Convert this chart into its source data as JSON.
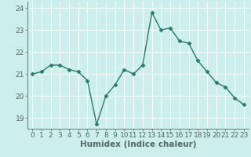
{
  "x": [
    0,
    1,
    2,
    3,
    4,
    5,
    6,
    7,
    8,
    9,
    10,
    11,
    12,
    13,
    14,
    15,
    16,
    17,
    18,
    19,
    20,
    21,
    22,
    23
  ],
  "y": [
    21.0,
    21.1,
    21.4,
    21.4,
    21.2,
    21.1,
    20.7,
    18.7,
    20.0,
    20.5,
    21.2,
    21.0,
    21.4,
    23.8,
    23.0,
    23.1,
    22.5,
    22.4,
    21.6,
    21.1,
    20.6,
    20.4,
    19.9,
    19.6
  ],
  "line_color": "#2a7a6a",
  "marker": "D",
  "markersize": 2.5,
  "linewidth": 1.0,
  "xlabel": "Humidex (Indice chaleur)",
  "ylim": [
    18.5,
    24.3
  ],
  "xlim": [
    -0.5,
    23.5
  ],
  "yticks": [
    19,
    20,
    21,
    22,
    23,
    24
  ],
  "xticks": [
    0,
    1,
    2,
    3,
    4,
    5,
    6,
    7,
    8,
    9,
    10,
    11,
    12,
    13,
    14,
    15,
    16,
    17,
    18,
    19,
    20,
    21,
    22,
    23
  ],
  "bg_color": "#cceeed",
  "grid_color": "#ffffff",
  "tick_fontsize": 6.5,
  "xlabel_fontsize": 7.5,
  "xlabel_fontweight": "bold",
  "spine_color": "#556666"
}
